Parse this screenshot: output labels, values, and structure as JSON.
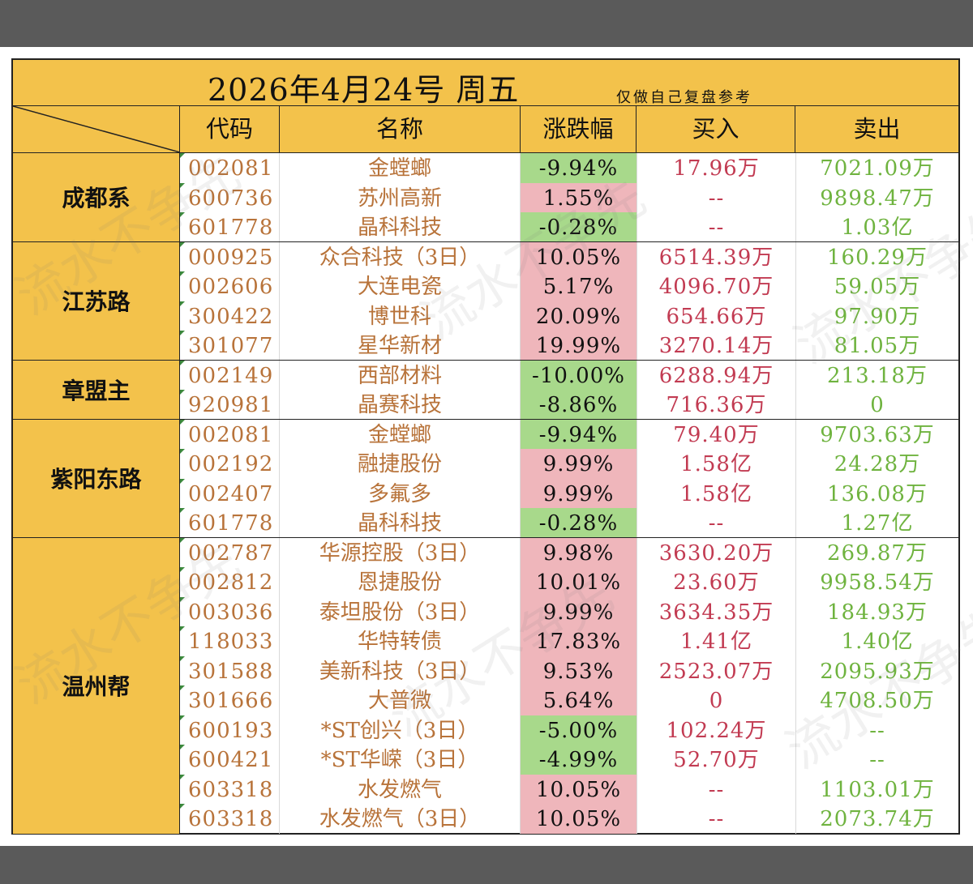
{
  "title": "2026年4月24号  周五",
  "note": "仅做自己复盘参考",
  "headers": {
    "code": "代码",
    "name": "名称",
    "change": "涨跌幅",
    "buy": "买入",
    "sell": "卖出"
  },
  "watermark": "流水不争先",
  "colors": {
    "header_bg": "#f3c24b",
    "up_bg": "#efb6bb",
    "down_bg": "#a8d98b",
    "buy_text": "#c23b52",
    "sell_text": "#6fb33f",
    "code_text": "#b8733a"
  },
  "groups": [
    {
      "name": "成都系",
      "rows": [
        {
          "code": "002081",
          "name": "金螳螂",
          "change": "-9.94%",
          "dir": "down",
          "buy": "17.96万",
          "sell": "7021.09万"
        },
        {
          "code": "600736",
          "name": "苏州高新",
          "change": "1.55%",
          "dir": "up",
          "buy": "--",
          "sell": "9898.47万"
        },
        {
          "code": "601778",
          "name": "晶科科技",
          "change": "-0.28%",
          "dir": "down",
          "buy": "--",
          "sell": "1.03亿"
        }
      ]
    },
    {
      "name": "江苏路",
      "rows": [
        {
          "code": "000925",
          "name": "众合科技（3日）",
          "change": "10.05%",
          "dir": "up",
          "buy": "6514.39万",
          "sell": "160.29万"
        },
        {
          "code": "002606",
          "name": "大连电瓷",
          "change": "5.17%",
          "dir": "up",
          "buy": "4096.70万",
          "sell": "59.05万"
        },
        {
          "code": "300422",
          "name": "博世科",
          "change": "20.09%",
          "dir": "up",
          "buy": "654.66万",
          "sell": "97.90万"
        },
        {
          "code": "301077",
          "name": "星华新材",
          "change": "19.99%",
          "dir": "up",
          "buy": "3270.14万",
          "sell": "81.05万"
        }
      ]
    },
    {
      "name": "章盟主",
      "rows": [
        {
          "code": "002149",
          "name": "西部材料",
          "change": "-10.00%",
          "dir": "down",
          "buy": "6288.94万",
          "sell": "213.18万"
        },
        {
          "code": "920981",
          "name": "晶赛科技",
          "change": "-8.86%",
          "dir": "down",
          "buy": "716.36万",
          "sell": "0"
        }
      ]
    },
    {
      "name": "紫阳东路",
      "rows": [
        {
          "code": "002081",
          "name": "金螳螂",
          "change": "-9.94%",
          "dir": "down",
          "buy": "79.40万",
          "sell": "9703.63万"
        },
        {
          "code": "002192",
          "name": "融捷股份",
          "change": "9.99%",
          "dir": "up",
          "buy": "1.58亿",
          "sell": "24.28万"
        },
        {
          "code": "002407",
          "name": "多氟多",
          "change": "9.99%",
          "dir": "up",
          "buy": "1.58亿",
          "sell": "136.08万"
        },
        {
          "code": "601778",
          "name": "晶科科技",
          "change": "-0.28%",
          "dir": "down",
          "buy": "--",
          "sell": "1.27亿"
        }
      ]
    },
    {
      "name": "温州帮",
      "rows": [
        {
          "code": "002787",
          "name": "华源控股（3日）",
          "change": "9.98%",
          "dir": "up",
          "buy": "3630.20万",
          "sell": "269.87万"
        },
        {
          "code": "002812",
          "name": "恩捷股份",
          "change": "10.01%",
          "dir": "up",
          "buy": "23.60万",
          "sell": "9958.54万"
        },
        {
          "code": "003036",
          "name": "泰坦股份（3日）",
          "change": "9.99%",
          "dir": "up",
          "buy": "3634.35万",
          "sell": "184.93万"
        },
        {
          "code": "118033",
          "name": "华特转债",
          "change": "17.83%",
          "dir": "up",
          "buy": "1.41亿",
          "sell": "1.40亿"
        },
        {
          "code": "301588",
          "name": "美新科技（3日）",
          "change": "9.53%",
          "dir": "up",
          "buy": "2523.07万",
          "sell": "2095.93万"
        },
        {
          "code": "301666",
          "name": "大普微",
          "change": "5.64%",
          "dir": "up",
          "buy": "0",
          "sell": "4708.50万"
        },
        {
          "code": "600193",
          "name": "*ST创兴（3日）",
          "change": "-5.00%",
          "dir": "down",
          "buy": "102.24万",
          "sell": "--"
        },
        {
          "code": "600421",
          "name": "*ST华嵘（3日）",
          "change": "-4.99%",
          "dir": "down",
          "buy": "52.70万",
          "sell": "--"
        },
        {
          "code": "603318",
          "name": "水发燃气",
          "change": "10.05%",
          "dir": "up",
          "buy": "--",
          "sell": "1103.01万"
        },
        {
          "code": "603318",
          "name": "水发燃气（3日）",
          "change": "10.05%",
          "dir": "up",
          "buy": "--",
          "sell": "2073.74万"
        }
      ]
    }
  ]
}
